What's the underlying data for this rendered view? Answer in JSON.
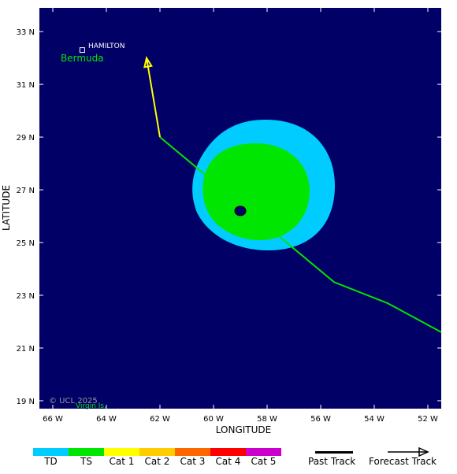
{
  "map": {
    "place_label": "HAMILTON",
    "region_label": "Bermuda",
    "secondary_label": "Virgin Is.",
    "copyright": "© UCL 2025",
    "colors": {
      "ocean": "#000066",
      "ts_wind": "#00e600",
      "td_wind": "#00ccff",
      "past_track": "#00e600",
      "forecast_track": "#ffff00",
      "center": "#000066"
    }
  },
  "axes": {
    "xlabel": "LONGITUDE",
    "ylabel": "LATITUDE",
    "x_ticks": [
      "66 W",
      "64 W",
      "62 W",
      "60 W",
      "58 W",
      "56 W",
      "54 W",
      "52 W"
    ],
    "y_ticks": [
      "33 N",
      "31 N",
      "29 N",
      "27 N",
      "25 N",
      "23 N",
      "21 N",
      "19 N"
    ],
    "x_range": [
      66.5,
      51.5
    ],
    "y_range": [
      18.7,
      33.9
    ]
  },
  "chart_data": {
    "type": "map",
    "past_track": [
      [
        51.5,
        21.6
      ],
      [
        53.5,
        22.7
      ],
      [
        55.5,
        23.5
      ],
      [
        62.0,
        29.0
      ]
    ],
    "forecast_track": [
      [
        62.0,
        29.0
      ],
      [
        62.5,
        32.0
      ]
    ],
    "storm_center": [
      59.0,
      26.2
    ],
    "place_marker": [
      64.9,
      32.3
    ]
  },
  "legend": {
    "categories": [
      "TD",
      "TS",
      "Cat 1",
      "Cat 2",
      "Cat 3",
      "Cat 4",
      "Cat 5"
    ],
    "colors": [
      "#00ccff",
      "#00e600",
      "#ffff00",
      "#ffcc00",
      "#ff6600",
      "#ff0000",
      "#cc00cc"
    ],
    "past_track_label": "Past Track",
    "forecast_track_label": "Forecast Track"
  }
}
